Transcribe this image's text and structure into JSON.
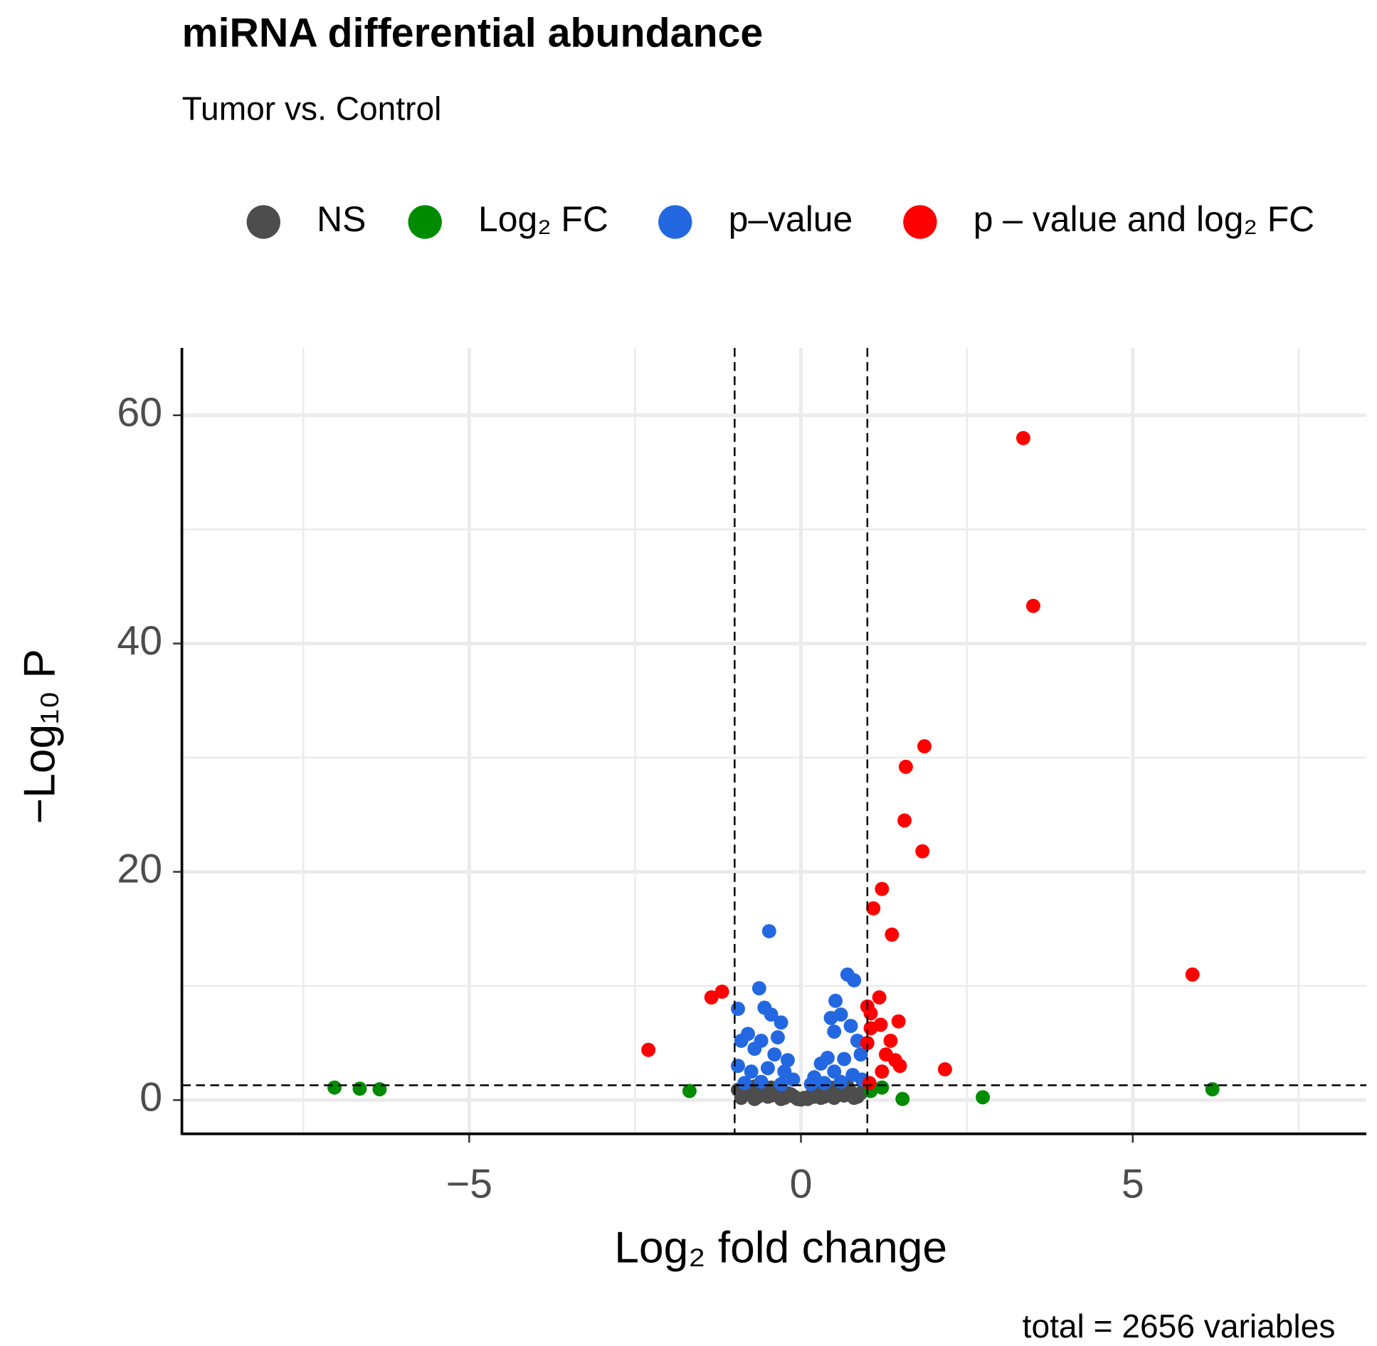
{
  "chart_data": {
    "type": "scatter",
    "title": "miRNA differential abundance",
    "subtitle": "Tumor vs. Control",
    "x_label": "Log₂ fold change",
    "y_label": "−Log₁₀ P",
    "caption": "total = 2656 variables",
    "legend": "top",
    "grid": true,
    "xlim": [
      -9.33,
      8.52
    ],
    "ylim": [
      -2.95,
      65.9
    ],
    "xticks": [
      {
        "value": -5,
        "label": "−5"
      },
      0,
      5
    ],
    "yticks": [
      0,
      20,
      40,
      60
    ],
    "xminor": [
      -7.5,
      -2.5,
      2.5,
      7.5
    ],
    "yminor": [
      10,
      30,
      50
    ],
    "thresholds": {
      "x": [
        -1,
        1
      ],
      "y": 1.3
    },
    "series": [
      {
        "name": "NS",
        "color": "#4d4d4d",
        "x": [
          -0.95,
          -0.85,
          -0.75,
          -0.65,
          -0.55,
          -0.45,
          -0.35,
          -0.25,
          -0.15,
          -0.05,
          0.05,
          0.15,
          0.25,
          0.35,
          0.45,
          0.55,
          0.65,
          0.75,
          0.85,
          0.95,
          -0.9,
          -0.8,
          -0.7,
          -0.6,
          -0.5,
          -0.4,
          -0.3,
          -0.2,
          -0.1,
          0,
          0.1,
          0.2,
          0.3,
          0.4,
          0.5,
          0.6,
          0.7,
          0.8,
          0.9,
          -0.45,
          0.45,
          -0.7,
          0.7
        ],
        "y": [
          0.9,
          0.5,
          0.8,
          0.3,
          0.7,
          0.4,
          0.9,
          0.2,
          0.5,
          0.1,
          0.2,
          0.4,
          0.8,
          0.3,
          0.6,
          0.9,
          0.4,
          0.7,
          0.3,
          0.9,
          0.2,
          0.9,
          0.1,
          1.0,
          0.3,
          0.7,
          0.1,
          0.6,
          0.3,
          0.05,
          0.1,
          0.3,
          0.2,
          0.9,
          0.2,
          0.5,
          1.0,
          0.2,
          0.6,
          1.1,
          1.1,
          1.2,
          1.2
        ]
      },
      {
        "name": "Log₂ FC",
        "color": "#008b00",
        "x": [
          -7.03,
          -6.65,
          -6.35,
          -1.68,
          1.05,
          1.22,
          1.53,
          2.74,
          6.2
        ],
        "y": [
          1.1,
          1.0,
          0.95,
          0.8,
          0.8,
          1.1,
          0.1,
          0.25,
          0.95
        ]
      },
      {
        "name": "p–value",
        "color": "#2368e1",
        "x": [
          -0.48,
          0.7,
          0.8,
          -0.63,
          0.52,
          -0.95,
          -0.55,
          -0.45,
          -0.3,
          0.45,
          0.6,
          0.75,
          -0.8,
          -0.9,
          -0.6,
          -0.35,
          0.5,
          0.85,
          -0.7,
          -0.4,
          -0.2,
          0.3,
          0.4,
          0.65,
          0.9,
          -0.95,
          -0.75,
          -0.5,
          -0.25,
          -0.12,
          0.2,
          0.5,
          0.78,
          0.92,
          -0.85,
          -0.6,
          -0.3,
          0.35,
          0.6,
          0.15
        ],
        "y": [
          14.8,
          11,
          10.5,
          9.8,
          8.7,
          8,
          8.1,
          7.5,
          6.8,
          7.2,
          7.5,
          6.5,
          5.8,
          5.2,
          5.2,
          5.5,
          6,
          5.2,
          4.5,
          4,
          3.5,
          3.2,
          3.7,
          3.6,
          4,
          3,
          2.5,
          2.8,
          2.5,
          1.8,
          2,
          2.5,
          2.2,
          1.8,
          1.5,
          1.6,
          1.4,
          1.5,
          1.6,
          1.4
        ]
      },
      {
        "name": "p – value and log₂ FC",
        "color": "#ff0000",
        "x": [
          3.35,
          3.5,
          1.86,
          1.58,
          1.56,
          1.83,
          1.22,
          1.09,
          1.37,
          5.9,
          -1.19,
          -1.35,
          -2.3,
          1.18,
          1.0,
          1.05,
          1.47,
          1.2,
          1.0,
          1.35,
          1.28,
          1.49,
          1.22,
          2.17,
          1.03,
          1.05,
          1.42
        ],
        "y": [
          58,
          43.3,
          31,
          29.2,
          24.5,
          21.8,
          18.5,
          16.8,
          14.5,
          11,
          9.5,
          9,
          4.4,
          9,
          8.2,
          7.6,
          6.9,
          6.6,
          5,
          5.2,
          4,
          3,
          2.5,
          2.7,
          1.5,
          6.3,
          3.5
        ]
      }
    ]
  }
}
